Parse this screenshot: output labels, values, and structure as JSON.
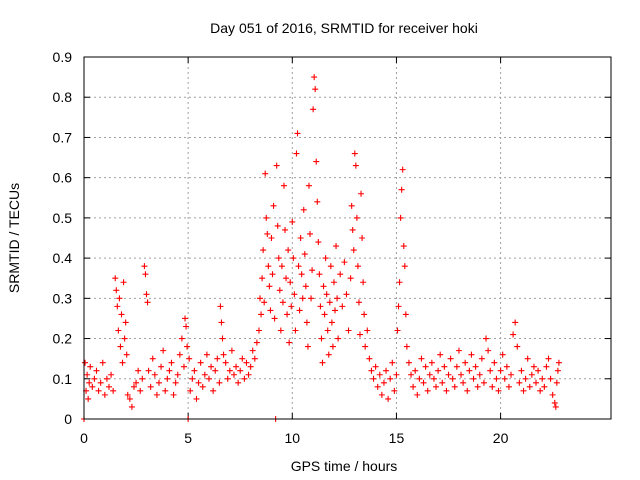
{
  "chart_data": {
    "type": "scatter",
    "title": "Day 051 of 2016, SRMTID for receiver hoki",
    "xlabel": "GPS time / hours",
    "ylabel": "SRMTID / TECUs",
    "xlim": [
      0,
      25.3
    ],
    "ylim": [
      0,
      0.9
    ],
    "x_ticks": [
      0,
      5,
      10,
      15,
      20
    ],
    "x_tick_labels": [
      "0",
      "5",
      "10",
      "15",
      "20"
    ],
    "y_ticks": [
      0,
      0.1,
      0.2,
      0.3,
      0.4,
      0.5,
      0.6,
      0.7,
      0.8,
      0.9
    ],
    "y_tick_labels": [
      "0",
      "0.1",
      "0.2",
      "0.3",
      "0.4",
      "0.5",
      "0.6",
      "0.7",
      "0.8",
      "0.9"
    ],
    "grid": true,
    "marker": "+",
    "color": "#ff0000",
    "series": [
      {
        "name": "SRMTID",
        "points": [
          [
            0.0,
            0.0
          ],
          [
            0.05,
            0.14
          ],
          [
            0.1,
            0.07
          ],
          [
            0.15,
            0.11
          ],
          [
            0.2,
            0.05
          ],
          [
            0.25,
            0.09
          ],
          [
            0.3,
            0.13
          ],
          [
            0.4,
            0.08
          ],
          [
            0.5,
            0.1
          ],
          [
            0.6,
            0.12
          ],
          [
            0.7,
            0.07
          ],
          [
            0.8,
            0.09
          ],
          [
            0.9,
            0.14
          ],
          [
            1.0,
            0.06
          ],
          [
            1.1,
            0.1
          ],
          [
            1.2,
            0.08
          ],
          [
            1.3,
            0.11
          ],
          [
            1.4,
            0.07
          ],
          [
            1.5,
            0.35
          ],
          [
            1.55,
            0.32
          ],
          [
            1.6,
            0.28
          ],
          [
            1.65,
            0.22
          ],
          [
            1.7,
            0.3
          ],
          [
            1.75,
            0.18
          ],
          [
            1.8,
            0.26
          ],
          [
            1.85,
            0.14
          ],
          [
            1.9,
            0.34
          ],
          [
            1.95,
            0.2
          ],
          [
            2.0,
            0.24
          ],
          [
            2.05,
            0.16
          ],
          [
            2.1,
            0.06
          ],
          [
            2.2,
            0.05
          ],
          [
            2.3,
            0.03
          ],
          [
            2.4,
            0.08
          ],
          [
            2.5,
            0.09
          ],
          [
            2.6,
            0.12
          ],
          [
            2.7,
            0.07
          ],
          [
            2.8,
            0.1
          ],
          [
            2.9,
            0.38
          ],
          [
            2.95,
            0.36
          ],
          [
            3.0,
            0.31
          ],
          [
            3.05,
            0.29
          ],
          [
            3.1,
            0.12
          ],
          [
            3.2,
            0.08
          ],
          [
            3.3,
            0.15
          ],
          [
            3.4,
            0.11
          ],
          [
            3.5,
            0.06
          ],
          [
            3.6,
            0.09
          ],
          [
            3.7,
            0.13
          ],
          [
            3.8,
            0.17
          ],
          [
            3.9,
            0.07
          ],
          [
            4.0,
            0.1
          ],
          [
            4.1,
            0.12
          ],
          [
            4.2,
            0.14
          ],
          [
            4.3,
            0.06
          ],
          [
            4.4,
            0.09
          ],
          [
            4.5,
            0.11
          ],
          [
            4.6,
            0.16
          ],
          [
            4.7,
            0.2
          ],
          [
            4.8,
            0.13
          ],
          [
            4.85,
            0.25
          ],
          [
            4.9,
            0.23
          ],
          [
            4.95,
            0.18
          ],
          [
            5.0,
            0.0
          ],
          [
            5.05,
            0.15
          ],
          [
            5.1,
            0.07
          ],
          [
            5.2,
            0.1
          ],
          [
            5.3,
            0.12
          ],
          [
            5.4,
            0.05
          ],
          [
            5.5,
            0.09
          ],
          [
            5.6,
            0.14
          ],
          [
            5.7,
            0.08
          ],
          [
            5.8,
            0.11
          ],
          [
            5.9,
            0.16
          ],
          [
            6.0,
            0.1
          ],
          [
            6.1,
            0.13
          ],
          [
            6.2,
            0.07
          ],
          [
            6.3,
            0.12
          ],
          [
            6.4,
            0.15
          ],
          [
            6.5,
            0.09
          ],
          [
            6.55,
            0.28
          ],
          [
            6.6,
            0.24
          ],
          [
            6.65,
            0.2
          ],
          [
            6.7,
            0.16
          ],
          [
            6.8,
            0.14
          ],
          [
            6.9,
            0.1
          ],
          [
            7.0,
            0.12
          ],
          [
            7.1,
            0.17
          ],
          [
            7.2,
            0.11
          ],
          [
            7.3,
            0.13
          ],
          [
            7.4,
            0.09
          ],
          [
            7.5,
            0.12
          ],
          [
            7.6,
            0.15
          ],
          [
            7.7,
            0.1
          ],
          [
            7.8,
            0.14
          ],
          [
            7.9,
            0.11
          ],
          [
            8.0,
            0.13
          ],
          [
            8.1,
            0.17
          ],
          [
            8.2,
            0.15
          ],
          [
            8.3,
            0.19
          ],
          [
            8.4,
            0.22
          ],
          [
            8.45,
            0.3
          ],
          [
            8.5,
            0.26
          ],
          [
            8.55,
            0.35
          ],
          [
            8.6,
            0.42
          ],
          [
            8.65,
            0.29
          ],
          [
            8.7,
            0.61
          ],
          [
            8.75,
            0.5
          ],
          [
            8.8,
            0.46
          ],
          [
            8.85,
            0.38
          ],
          [
            8.9,
            0.33
          ],
          [
            8.95,
            0.27
          ],
          [
            9.0,
            0.45
          ],
          [
            9.05,
            0.36
          ],
          [
            9.1,
            0.53
          ],
          [
            9.15,
            0.25
          ],
          [
            9.2,
            0.0
          ],
          [
            9.25,
            0.63
          ],
          [
            9.3,
            0.48
          ],
          [
            9.35,
            0.4
          ],
          [
            9.4,
            0.32
          ],
          [
            9.45,
            0.22
          ],
          [
            9.5,
            0.38
          ],
          [
            9.55,
            0.29
          ],
          [
            9.6,
            0.58
          ],
          [
            9.65,
            0.47
          ],
          [
            9.7,
            0.35
          ],
          [
            9.75,
            0.26
          ],
          [
            9.8,
            0.42
          ],
          [
            9.85,
            0.19
          ],
          [
            9.9,
            0.34
          ],
          [
            9.95,
            0.28
          ],
          [
            10.0,
            0.49
          ],
          [
            10.05,
            0.4
          ],
          [
            10.1,
            0.31
          ],
          [
            10.15,
            0.22
          ],
          [
            10.2,
            0.66
          ],
          [
            10.25,
            0.71
          ],
          [
            10.3,
            0.38
          ],
          [
            10.35,
            0.27
          ],
          [
            10.4,
            0.45
          ],
          [
            10.45,
            0.36
          ],
          [
            10.5,
            0.3
          ],
          [
            10.55,
            0.52
          ],
          [
            10.6,
            0.41
          ],
          [
            10.65,
            0.33
          ],
          [
            10.7,
            0.24
          ],
          [
            10.75,
            0.18
          ],
          [
            10.8,
            0.58
          ],
          [
            10.85,
            0.46
          ],
          [
            10.9,
            0.3
          ],
          [
            10.95,
            0.37
          ],
          [
            11.0,
            0.77
          ],
          [
            11.05,
            0.85
          ],
          [
            11.1,
            0.82
          ],
          [
            11.15,
            0.64
          ],
          [
            11.2,
            0.54
          ],
          [
            11.25,
            0.44
          ],
          [
            11.3,
            0.36
          ],
          [
            11.35,
            0.28
          ],
          [
            11.4,
            0.2
          ],
          [
            11.45,
            0.14
          ],
          [
            11.5,
            0.33
          ],
          [
            11.55,
            0.26
          ],
          [
            11.6,
            0.4
          ],
          [
            11.65,
            0.31
          ],
          [
            11.7,
            0.22
          ],
          [
            11.75,
            0.16
          ],
          [
            11.8,
            0.29
          ],
          [
            11.85,
            0.38
          ],
          [
            11.9,
            0.24
          ],
          [
            11.95,
            0.18
          ],
          [
            12.0,
            0.34
          ],
          [
            12.05,
            0.27
          ],
          [
            12.1,
            0.43
          ],
          [
            12.15,
            0.3
          ],
          [
            12.2,
            0.2
          ],
          [
            12.3,
            0.36
          ],
          [
            12.4,
            0.28
          ],
          [
            12.5,
            0.39
          ],
          [
            12.6,
            0.31
          ],
          [
            12.7,
            0.22
          ],
          [
            12.8,
            0.35
          ],
          [
            12.85,
            0.53
          ],
          [
            12.9,
            0.47
          ],
          [
            12.95,
            0.42
          ],
          [
            13.0,
            0.66
          ],
          [
            13.05,
            0.63
          ],
          [
            13.1,
            0.5
          ],
          [
            13.15,
            0.38
          ],
          [
            13.2,
            0.29
          ],
          [
            13.25,
            0.21
          ],
          [
            13.3,
            0.56
          ],
          [
            13.35,
            0.45
          ],
          [
            13.4,
            0.34
          ],
          [
            13.45,
            0.26
          ],
          [
            13.5,
            0.18
          ],
          [
            13.6,
            0.22
          ],
          [
            13.7,
            0.15
          ],
          [
            13.8,
            0.12
          ],
          [
            13.9,
            0.1
          ],
          [
            14.0,
            0.13
          ],
          [
            14.1,
            0.08
          ],
          [
            14.2,
            0.11
          ],
          [
            14.3,
            0.06
          ],
          [
            14.4,
            0.09
          ],
          [
            14.5,
            0.12
          ],
          [
            14.6,
            0.05
          ],
          [
            14.7,
            0.1
          ],
          [
            14.8,
            0.14
          ],
          [
            14.9,
            0.07
          ],
          [
            15.0,
            0.11
          ],
          [
            15.05,
            0.22
          ],
          [
            15.1,
            0.28
          ],
          [
            15.15,
            0.34
          ],
          [
            15.2,
            0.5
          ],
          [
            15.25,
            0.57
          ],
          [
            15.3,
            0.62
          ],
          [
            15.35,
            0.43
          ],
          [
            15.4,
            0.38
          ],
          [
            15.45,
            0.26
          ],
          [
            15.5,
            0.18
          ],
          [
            15.6,
            0.14
          ],
          [
            15.7,
            0.11
          ],
          [
            15.8,
            0.08
          ],
          [
            15.9,
            0.12
          ],
          [
            16.0,
            0.06
          ],
          [
            16.1,
            0.1
          ],
          [
            16.2,
            0.15
          ],
          [
            16.3,
            0.09
          ],
          [
            16.4,
            0.13
          ],
          [
            16.5,
            0.07
          ],
          [
            16.6,
            0.11
          ],
          [
            16.7,
            0.14
          ],
          [
            16.8,
            0.1
          ],
          [
            16.9,
            0.08
          ],
          [
            17.0,
            0.12
          ],
          [
            17.1,
            0.16
          ],
          [
            17.2,
            0.09
          ],
          [
            17.3,
            0.13
          ],
          [
            17.4,
            0.07
          ],
          [
            17.5,
            0.11
          ],
          [
            17.6,
            0.15
          ],
          [
            17.7,
            0.1
          ],
          [
            17.8,
            0.08
          ],
          [
            17.9,
            0.13
          ],
          [
            18.0,
            0.17
          ],
          [
            18.1,
            0.11
          ],
          [
            18.2,
            0.09
          ],
          [
            18.3,
            0.14
          ],
          [
            18.4,
            0.07
          ],
          [
            18.5,
            0.12
          ],
          [
            18.6,
            0.16
          ],
          [
            18.7,
            0.1
          ],
          [
            18.8,
            0.13
          ],
          [
            18.9,
            0.08
          ],
          [
            19.0,
            0.11
          ],
          [
            19.1,
            0.15
          ],
          [
            19.2,
            0.09
          ],
          [
            19.3,
            0.2
          ],
          [
            19.4,
            0.17
          ],
          [
            19.5,
            0.12
          ],
          [
            19.6,
            0.08
          ],
          [
            19.7,
            0.14
          ],
          [
            19.8,
            0.1
          ],
          [
            19.9,
            0.07
          ],
          [
            20.0,
            0.12
          ],
          [
            20.1,
            0.16
          ],
          [
            20.2,
            0.1
          ],
          [
            20.3,
            0.13
          ],
          [
            20.4,
            0.08
          ],
          [
            20.5,
            0.11
          ],
          [
            20.6,
            0.21
          ],
          [
            20.7,
            0.24
          ],
          [
            20.8,
            0.18
          ],
          [
            20.9,
            0.09
          ],
          [
            21.0,
            0.12
          ],
          [
            21.1,
            0.07
          ],
          [
            21.2,
            0.1
          ],
          [
            21.3,
            0.15
          ],
          [
            21.4,
            0.08
          ],
          [
            21.5,
            0.11
          ],
          [
            21.6,
            0.13
          ],
          [
            21.7,
            0.09
          ],
          [
            21.8,
            0.12
          ],
          [
            21.9,
            0.07
          ],
          [
            22.0,
            0.1
          ],
          [
            22.1,
            0.08
          ],
          [
            22.2,
            0.13
          ],
          [
            22.3,
            0.15
          ],
          [
            22.4,
            0.1
          ],
          [
            22.5,
            0.06
          ],
          [
            22.6,
            0.04
          ],
          [
            22.65,
            0.03
          ],
          [
            22.7,
            0.09
          ],
          [
            22.75,
            0.12
          ],
          [
            22.8,
            0.14
          ]
        ]
      }
    ]
  }
}
